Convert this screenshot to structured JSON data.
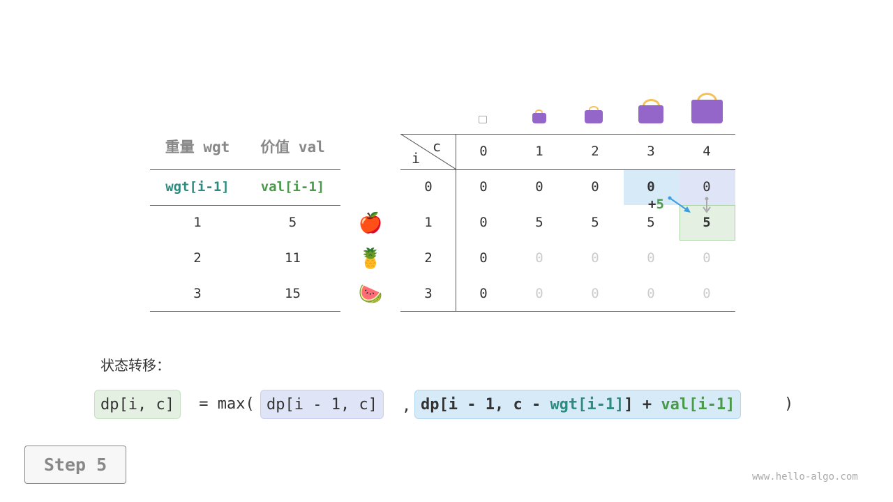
{
  "items_table": {
    "headers": [
      "重量 wgt",
      "价值 val"
    ],
    "subheaders": [
      "wgt[i-1]",
      "val[i-1]"
    ],
    "rows": [
      {
        "wgt": "1",
        "val": "5",
        "icon": "apple-icon",
        "emoji": "🍎"
      },
      {
        "wgt": "2",
        "val": "11",
        "icon": "pineapple-icon",
        "emoji": "🍍"
      },
      {
        "wgt": "3",
        "val": "15",
        "icon": "watermelon-icon",
        "emoji": "🍉"
      }
    ]
  },
  "dp_table": {
    "corner_row": "i",
    "corner_col": "c",
    "col_headers": [
      "0",
      "1",
      "2",
      "3",
      "4"
    ],
    "row_headers": [
      "0",
      "1",
      "2",
      "3"
    ],
    "cells": [
      [
        "0",
        "0",
        "0",
        "0",
        "0"
      ],
      [
        "0",
        "5",
        "5",
        "5",
        "5"
      ],
      [
        "0",
        "0",
        "0",
        "0",
        "0"
      ],
      [
        "0",
        "0",
        "0",
        "0",
        "0"
      ]
    ],
    "annotation": {
      "plus": "+",
      "value": "5"
    }
  },
  "formula": {
    "label": "状态转移：",
    "lhs": "dp[i, c]",
    "eq": " = max(",
    "a": "dp[i - 1, c]",
    "comma": ",",
    "b_prefix": "dp[i - 1, c - ",
    "b_wgt": "wgt[i-1]",
    "b_mid": "] + ",
    "b_val": "val[i-1]",
    "close": ")"
  },
  "step_button": "Step 5",
  "watermark": "www.hello-algo.com",
  "colors": {
    "highlight_blue": "#d6eaf8",
    "highlight_purple": "#e0e4f7",
    "highlight_green": "#e3f0e2",
    "bag": "#9466c9"
  }
}
